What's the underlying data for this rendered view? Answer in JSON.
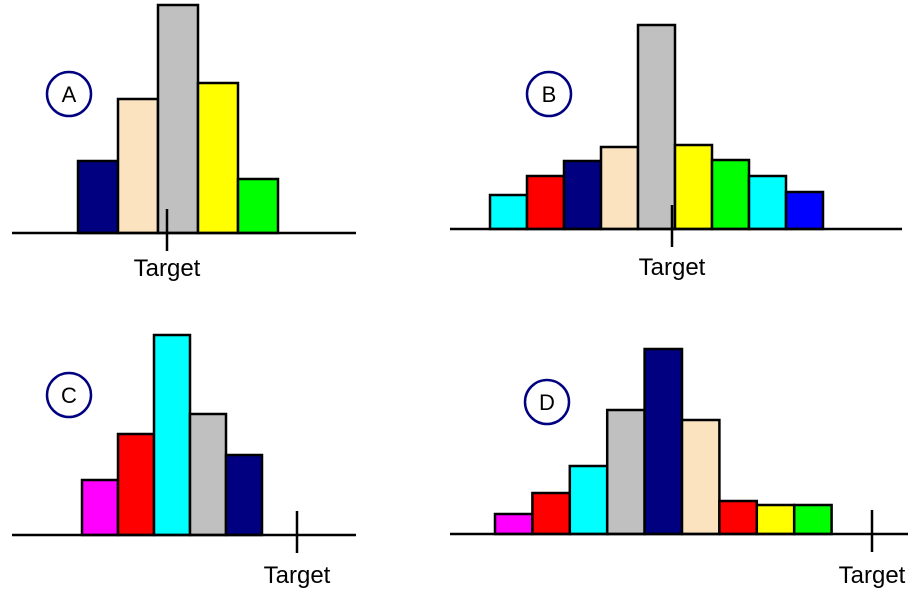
{
  "panels": [
    {
      "id": "A",
      "label": "A",
      "target_label": "Target",
      "bars": [
        {
          "color": "#000080",
          "value": 72
        },
        {
          "color": "#FBE3C0",
          "value": 134
        },
        {
          "color": "#C0C0C0",
          "value": 228
        },
        {
          "color": "#FFFF00",
          "value": 150
        },
        {
          "color": "#00FF00",
          "value": 54
        }
      ]
    },
    {
      "id": "B",
      "label": "B",
      "target_label": "Target",
      "bars": [
        {
          "color": "#00FFFF",
          "value": 34
        },
        {
          "color": "#FF0000",
          "value": 53
        },
        {
          "color": "#000080",
          "value": 68
        },
        {
          "color": "#FBE3C0",
          "value": 82
        },
        {
          "color": "#C0C0C0",
          "value": 204
        },
        {
          "color": "#FFFF00",
          "value": 84
        },
        {
          "color": "#00FF00",
          "value": 69
        },
        {
          "color": "#00FFFF",
          "value": 53
        },
        {
          "color": "#0000FF",
          "value": 37
        }
      ]
    },
    {
      "id": "C",
      "label": "C",
      "target_label": "Target",
      "bars": [
        {
          "color": "#FF00FF",
          "value": 55
        },
        {
          "color": "#FF0000",
          "value": 101
        },
        {
          "color": "#00FFFF",
          "value": 200
        },
        {
          "color": "#C0C0C0",
          "value": 121
        },
        {
          "color": "#000080",
          "value": 80
        }
      ]
    },
    {
      "id": "D",
      "label": "D",
      "target_label": "Target",
      "bars": [
        {
          "color": "#FF00FF",
          "value": 20
        },
        {
          "color": "#FF0000",
          "value": 41
        },
        {
          "color": "#00FFFF",
          "value": 68
        },
        {
          "color": "#C0C0C0",
          "value": 124
        },
        {
          "color": "#000080",
          "value": 185
        },
        {
          "color": "#FBE3C0",
          "value": 114
        },
        {
          "color": "#FF0000",
          "value": 33
        },
        {
          "color": "#FFFF00",
          "value": 29
        },
        {
          "color": "#00FF00",
          "value": 29
        }
      ]
    }
  ]
}
